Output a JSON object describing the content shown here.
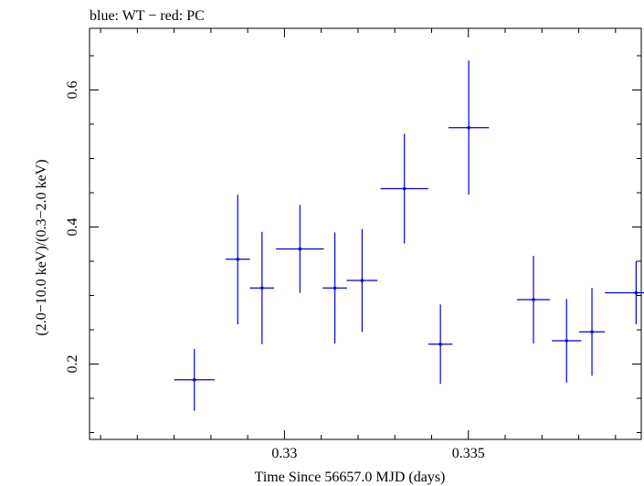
{
  "chart_data": {
    "type": "scatter",
    "title": "blue: WT − red: PC",
    "xlabel": "Time Since 56657.0 MJD (days)",
    "ylabel": "(2.0−10.0 keV)/(0.3−2.0 keV)",
    "xlim": [
      0.3247,
      0.3397
    ],
    "ylim": [
      0.09,
      0.69
    ],
    "x_ticks": [
      {
        "value": 0.33,
        "label": "0.33"
      },
      {
        "value": 0.335,
        "label": "0.335"
      }
    ],
    "y_ticks": [
      {
        "value": 0.2,
        "label": "0.2"
      },
      {
        "value": 0.4,
        "label": "0.4"
      },
      {
        "value": 0.6,
        "label": "0.6"
      }
    ],
    "x_minor_step": 0.001,
    "y_minor_step": 0.05,
    "grid": false,
    "series": [
      {
        "color": "#0000dd",
        "points": [
          {
            "x": 0.32755,
            "xerr": 0.00055,
            "y": 0.177,
            "yerr_lo": 0.045,
            "yerr_hi": 0.045
          },
          {
            "x": 0.32873,
            "xerr": 0.00033,
            "y": 0.353,
            "yerr_lo": 0.095,
            "yerr_hi": 0.094
          },
          {
            "x": 0.32939,
            "xerr": 0.00033,
            "y": 0.311,
            "yerr_lo": 0.082,
            "yerr_hi": 0.082
          },
          {
            "x": 0.33042,
            "xerr": 0.00065,
            "y": 0.368,
            "yerr_lo": 0.064,
            "yerr_hi": 0.064
          },
          {
            "x": 0.33137,
            "xerr": 0.00033,
            "y": 0.311,
            "yerr_lo": 0.081,
            "yerr_hi": 0.081
          },
          {
            "x": 0.33211,
            "xerr": 0.00042,
            "y": 0.322,
            "yerr_lo": 0.075,
            "yerr_hi": 0.075
          },
          {
            "x": 0.33326,
            "xerr": 0.00065,
            "y": 0.456,
            "yerr_lo": 0.08,
            "yerr_hi": 0.08
          },
          {
            "x": 0.33424,
            "xerr": 0.00033,
            "y": 0.229,
            "yerr_lo": 0.058,
            "yerr_hi": 0.058
          },
          {
            "x": 0.33501,
            "xerr": 0.00055,
            "y": 0.545,
            "yerr_lo": 0.098,
            "yerr_hi": 0.098
          },
          {
            "x": 0.33677,
            "xerr": 0.00045,
            "y": 0.294,
            "yerr_lo": 0.064,
            "yerr_hi": 0.064
          },
          {
            "x": 0.33767,
            "xerr": 0.0004,
            "y": 0.234,
            "yerr_lo": 0.061,
            "yerr_hi": 0.061
          },
          {
            "x": 0.33836,
            "xerr": 0.00035,
            "y": 0.247,
            "yerr_lo": 0.064,
            "yerr_hi": 0.064
          },
          {
            "x": 0.33956,
            "xerr": 0.00085,
            "y": 0.304,
            "yerr_lo": 0.046,
            "yerr_hi": 0.046
          }
        ]
      }
    ]
  }
}
